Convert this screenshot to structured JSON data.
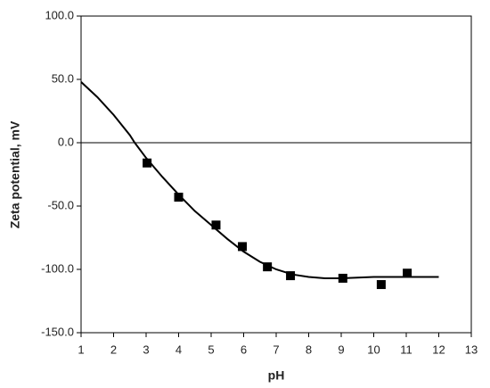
{
  "chart_data": {
    "type": "scatter",
    "x_label": "pH",
    "y_label": "Zeta potential, mV",
    "xlim": [
      1,
      13
    ],
    "xticks": [
      1,
      2,
      3,
      4,
      5,
      6,
      7,
      8,
      9,
      10,
      11,
      12,
      13
    ],
    "ylim": [
      -150,
      100
    ],
    "yticks": [
      {
        "value": -150,
        "label": "-150.0"
      },
      {
        "value": -100,
        "label": "-100.0"
      },
      {
        "value": -50,
        "label": "-50.0"
      },
      {
        "value": 0,
        "label": "0.0"
      },
      {
        "value": 50,
        "label": "50.0"
      },
      {
        "value": 100,
        "label": "100.0"
      }
    ],
    "zero_line": true,
    "series": [
      {
        "type": "scatter",
        "color": "#000000",
        "x": [
          3.03,
          4.0,
          5.15,
          5.96,
          6.73,
          7.44,
          9.05,
          10.23,
          11.03
        ],
        "values": [
          -16,
          -43,
          -65,
          -82,
          -98,
          -105,
          -107,
          -112,
          -103
        ]
      },
      {
        "type": "line",
        "color": "#000000",
        "x": [
          1,
          1.5,
          2,
          2.5,
          2.65,
          3,
          3.5,
          4,
          4.5,
          5,
          5.5,
          6,
          6.5,
          7,
          7.5,
          8,
          8.5,
          9,
          10,
          11,
          12
        ],
        "values": [
          48,
          36,
          22,
          6,
          0,
          -12,
          -27,
          -41,
          -54,
          -65,
          -76,
          -86,
          -94,
          -100,
          -104,
          -106,
          -107,
          -107,
          -106,
          -106,
          -106
        ]
      }
    ]
  }
}
